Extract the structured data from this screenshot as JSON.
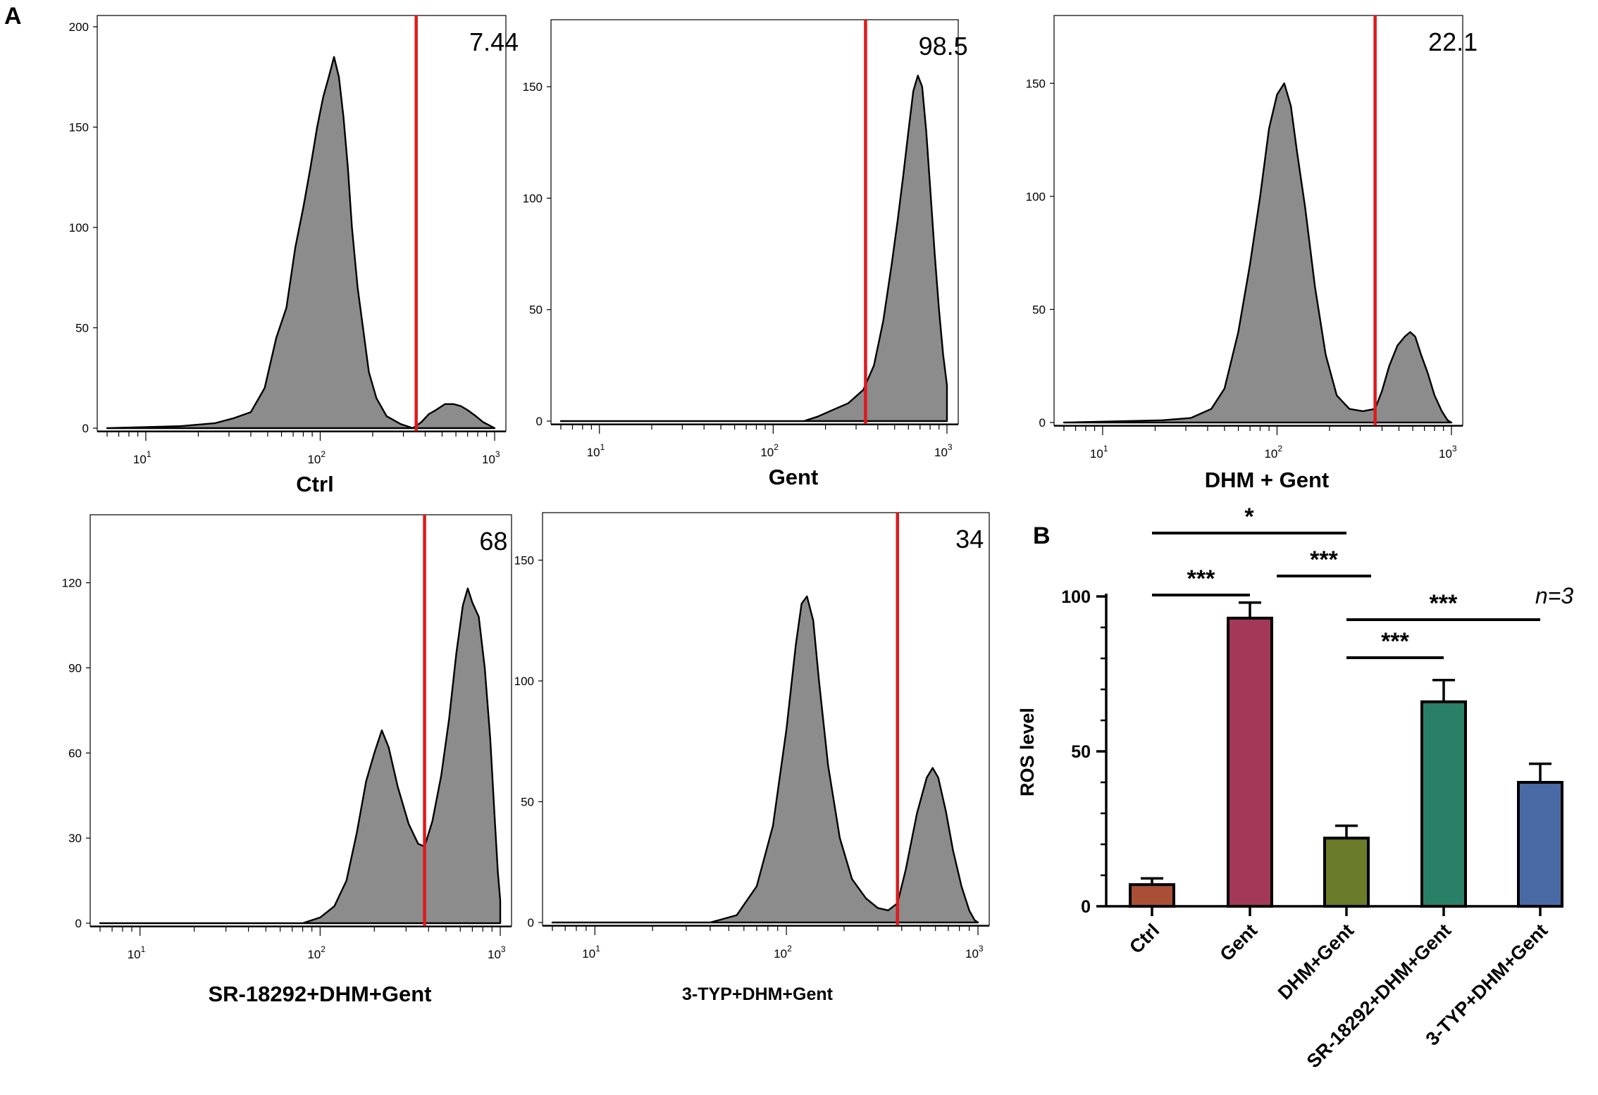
{
  "panel_labels": {
    "a": "A",
    "b": "B"
  },
  "colors": {
    "fill": "#8c8c8c",
    "gate": "#e0191c",
    "bars": [
      "#a84f36",
      "#a43858",
      "#6a7b29",
      "#2a8067",
      "#4a6aa5"
    ]
  },
  "chart_data": [
    {
      "type": "histogram",
      "title": "Ctrl",
      "gate_percent": "7.44",
      "x_scale": "log",
      "xlim": [
        6,
        1000
      ],
      "xticks": [
        {
          "base": "10",
          "exp": "1",
          "v": 10
        },
        {
          "base": "10",
          "exp": "2",
          "v": 100
        },
        {
          "base": "10",
          "exp": "3",
          "v": 1000
        }
      ],
      "ylim": [
        0,
        200
      ],
      "yticks": [
        "0",
        "50",
        "100",
        "150",
        "200"
      ],
      "gate_x": 355,
      "curve": [
        [
          6,
          0
        ],
        [
          16,
          1
        ],
        [
          25,
          2.5
        ],
        [
          32,
          5
        ],
        [
          40,
          8
        ],
        [
          48,
          20
        ],
        [
          56,
          45
        ],
        [
          64,
          60
        ],
        [
          72,
          90
        ],
        [
          80,
          110
        ],
        [
          88,
          130
        ],
        [
          96,
          150
        ],
        [
          104,
          165
        ],
        [
          112,
          175
        ],
        [
          120,
          185
        ],
        [
          128,
          175
        ],
        [
          136,
          155
        ],
        [
          144,
          130
        ],
        [
          152,
          100
        ],
        [
          164,
          70
        ],
        [
          176,
          50
        ],
        [
          190,
          28
        ],
        [
          210,
          15
        ],
        [
          240,
          6
        ],
        [
          290,
          2
        ],
        [
          340,
          0
        ],
        [
          380,
          3
        ],
        [
          420,
          7
        ],
        [
          460,
          9
        ],
        [
          520,
          12
        ],
        [
          580,
          12
        ],
        [
          640,
          11
        ],
        [
          700,
          9
        ],
        [
          780,
          6
        ],
        [
          860,
          3
        ],
        [
          950,
          1
        ],
        [
          1000,
          0
        ]
      ]
    },
    {
      "type": "histogram",
      "title": "Gent",
      "gate_percent": "98.5",
      "x_scale": "log",
      "xlim": [
        6,
        1000
      ],
      "xticks": [
        {
          "base": "10",
          "exp": "1",
          "v": 10
        },
        {
          "base": "10",
          "exp": "2",
          "v": 100
        },
        {
          "base": "10",
          "exp": "3",
          "v": 1000
        }
      ],
      "ylim": [
        0,
        175
      ],
      "yticks": [
        "0",
        "50",
        "100",
        "150"
      ],
      "gate_x": 340,
      "curve": [
        [
          6,
          0
        ],
        [
          150,
          0
        ],
        [
          180,
          2
        ],
        [
          220,
          5
        ],
        [
          270,
          8
        ],
        [
          330,
          14
        ],
        [
          380,
          25
        ],
        [
          430,
          45
        ],
        [
          480,
          70
        ],
        [
          520,
          90
        ],
        [
          560,
          110
        ],
        [
          600,
          130
        ],
        [
          640,
          148
        ],
        [
          680,
          155
        ],
        [
          720,
          150
        ],
        [
          760,
          130
        ],
        [
          800,
          105
        ],
        [
          850,
          75
        ],
        [
          900,
          50
        ],
        [
          950,
          30
        ],
        [
          1000,
          16
        ]
      ]
    },
    {
      "type": "histogram",
      "title": "DHM + Gent",
      "gate_percent": "22.1",
      "x_scale": "log",
      "xlim": [
        6,
        1000
      ],
      "xticks": [
        {
          "base": "10",
          "exp": "1",
          "v": 10
        },
        {
          "base": "10",
          "exp": "2",
          "v": 100
        },
        {
          "base": "10",
          "exp": "3",
          "v": 1000
        }
      ],
      "ylim": [
        0,
        175
      ],
      "yticks": [
        "0",
        "50",
        "100",
        "150"
      ],
      "gate_x": 365,
      "curve": [
        [
          6,
          0
        ],
        [
          22,
          1
        ],
        [
          32,
          2
        ],
        [
          42,
          6
        ],
        [
          50,
          15
        ],
        [
          60,
          40
        ],
        [
          70,
          70
        ],
        [
          80,
          100
        ],
        [
          90,
          130
        ],
        [
          100,
          145
        ],
        [
          110,
          150
        ],
        [
          120,
          140
        ],
        [
          130,
          120
        ],
        [
          145,
          95
        ],
        [
          165,
          60
        ],
        [
          190,
          30
        ],
        [
          220,
          12
        ],
        [
          260,
          6
        ],
        [
          310,
          5
        ],
        [
          365,
          6
        ],
        [
          400,
          14
        ],
        [
          440,
          25
        ],
        [
          490,
          34
        ],
        [
          540,
          38
        ],
        [
          580,
          40
        ],
        [
          620,
          38
        ],
        [
          670,
          30
        ],
        [
          730,
          22
        ],
        [
          800,
          12
        ],
        [
          880,
          5
        ],
        [
          950,
          1
        ],
        [
          1000,
          0
        ]
      ]
    },
    {
      "type": "histogram",
      "title": "SR-18292+DHM+Gent",
      "gate_percent": "68",
      "x_scale": "log",
      "xlim": [
        6,
        1000
      ],
      "xticks": [
        {
          "base": "10",
          "exp": "1",
          "v": 10
        },
        {
          "base": "10",
          "exp": "2",
          "v": 100
        },
        {
          "base": "10",
          "exp": "3",
          "v": 1000
        }
      ],
      "ylim": [
        0,
        140
      ],
      "yticks": [
        "0",
        "30",
        "60",
        "90",
        "120"
      ],
      "gate_x": 380,
      "curve": [
        [
          6,
          0
        ],
        [
          80,
          0
        ],
        [
          100,
          2
        ],
        [
          120,
          6
        ],
        [
          140,
          15
        ],
        [
          160,
          32
        ],
        [
          180,
          50
        ],
        [
          200,
          60
        ],
        [
          220,
          68
        ],
        [
          240,
          62
        ],
        [
          270,
          48
        ],
        [
          310,
          35
        ],
        [
          350,
          28
        ],
        [
          380,
          27
        ],
        [
          420,
          36
        ],
        [
          470,
          52
        ],
        [
          520,
          72
        ],
        [
          570,
          95
        ],
        [
          620,
          112
        ],
        [
          660,
          118
        ],
        [
          700,
          113
        ],
        [
          760,
          108
        ],
        [
          820,
          90
        ],
        [
          880,
          65
        ],
        [
          930,
          38
        ],
        [
          970,
          18
        ],
        [
          1000,
          8
        ]
      ]
    },
    {
      "type": "histogram",
      "title": "3-TYP+DHM+Gent",
      "gate_percent": "34",
      "x_scale": "log",
      "xlim": [
        6,
        1000
      ],
      "xticks": [
        {
          "base": "10",
          "exp": "1",
          "v": 10
        },
        {
          "base": "10",
          "exp": "2",
          "v": 100
        },
        {
          "base": "10",
          "exp": "3",
          "v": 1000
        }
      ],
      "ylim": [
        0,
        165
      ],
      "yticks": [
        "0",
        "50",
        "100",
        "150"
      ],
      "gate_x": 380,
      "curve": [
        [
          6,
          0
        ],
        [
          40,
          0
        ],
        [
          55,
          3
        ],
        [
          70,
          15
        ],
        [
          85,
          40
        ],
        [
          100,
          80
        ],
        [
          112,
          115
        ],
        [
          120,
          132
        ],
        [
          128,
          135
        ],
        [
          138,
          125
        ],
        [
          148,
          100
        ],
        [
          165,
          65
        ],
        [
          190,
          35
        ],
        [
          220,
          18
        ],
        [
          260,
          10
        ],
        [
          300,
          6
        ],
        [
          340,
          5
        ],
        [
          380,
          8
        ],
        [
          420,
          22
        ],
        [
          480,
          45
        ],
        [
          540,
          60
        ],
        [
          580,
          64
        ],
        [
          620,
          60
        ],
        [
          680,
          46
        ],
        [
          740,
          30
        ],
        [
          820,
          15
        ],
        [
          900,
          5
        ],
        [
          960,
          1
        ],
        [
          1000,
          0
        ]
      ]
    },
    {
      "type": "bar",
      "categories": [
        "Ctrl",
        "Gent",
        "DHM+Gent",
        "SR-18292+DHM+Gent",
        "3-TYP+DHM+Gent"
      ],
      "values": [
        7,
        93,
        22,
        66,
        40
      ],
      "errors": [
        2,
        5,
        4,
        7,
        6
      ],
      "ylabel": "ROS level",
      "ylim": [
        0,
        100
      ],
      "yticks": [
        "0",
        "50",
        "100"
      ],
      "n_label": "n=3",
      "significance": [
        {
          "from": 0,
          "to": 2,
          "label": "*",
          "level": 1
        },
        {
          "from": 0,
          "to": 1,
          "label": "***",
          "level": 2
        },
        {
          "from": 1,
          "to": 2,
          "label": "***",
          "level": 3
        },
        {
          "from": 2,
          "to": 4,
          "label": "***",
          "level": 4
        },
        {
          "from": 2,
          "to": 3,
          "label": "***",
          "level": 5
        }
      ]
    }
  ]
}
